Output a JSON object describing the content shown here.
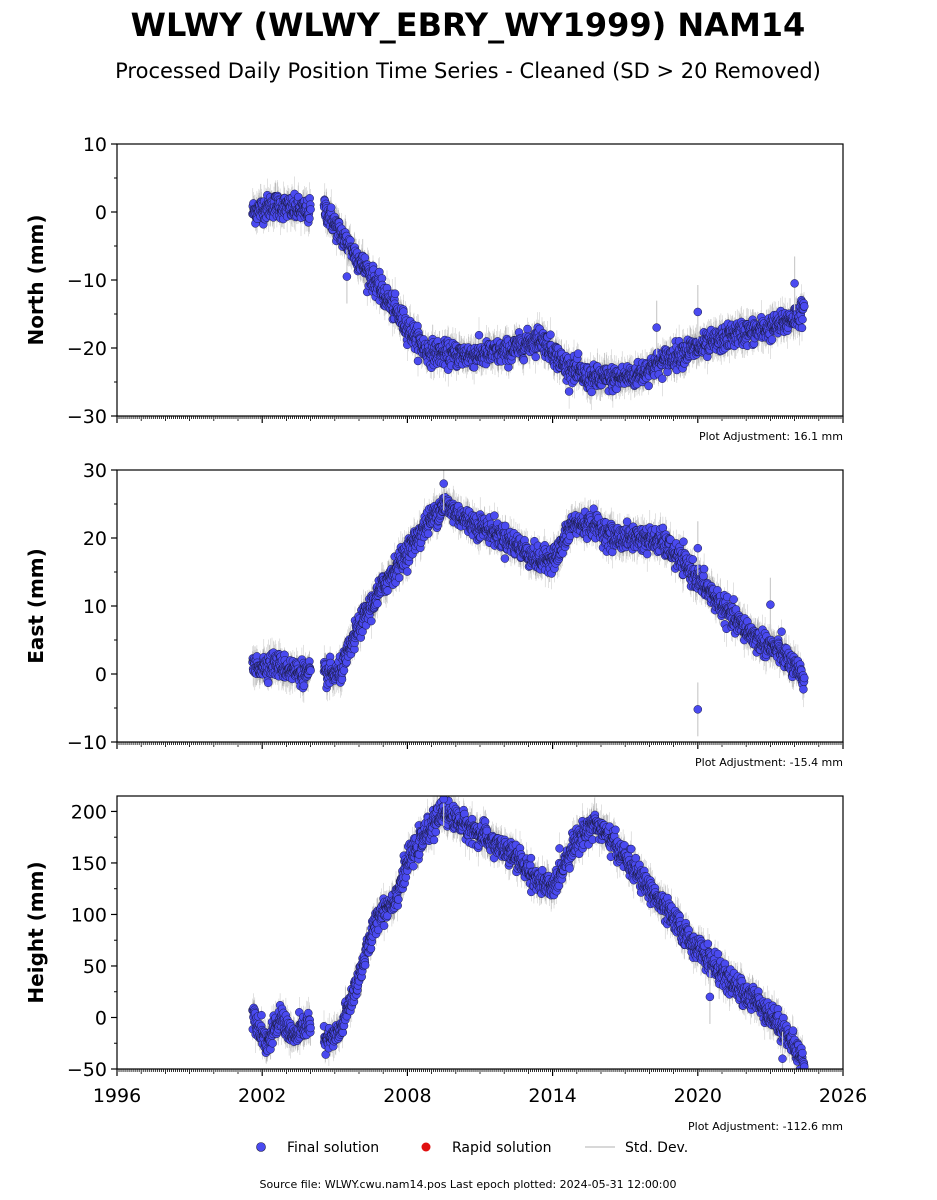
{
  "title": "WLWY (WLWY_EBRY_WY1999) NAM14",
  "subtitle": "Processed Daily Position Time Series - Cleaned (SD > 20 Removed)",
  "footer": "Source file: WLWY.cwu.nam14.pos  Last epoch plotted: 2024-05-31 12:00:00",
  "legend": {
    "final": "Final solution",
    "rapid": "Rapid solution",
    "std": "Std. Dev."
  },
  "colors": {
    "final_fill": "#4a4af0",
    "final_edge": "#1a1a40",
    "rapid": "#e01010",
    "std_dev": "#cccccc",
    "std_dev_dense": "#555555"
  },
  "chart_data": [
    {
      "type": "scatter",
      "ylabel": "North (mm)",
      "adjustment": "Plot Adjustment: 16.1 mm",
      "xlim": [
        1996,
        2026
      ],
      "ylim": [
        -30,
        10
      ],
      "yticks": [
        "10",
        "0",
        "−10",
        "−20",
        "−30"
      ],
      "ytick_values": [
        10,
        0,
        -10,
        -20,
        -30
      ],
      "trend": [
        [
          2001.6,
          0
        ],
        [
          2002.5,
          1
        ],
        [
          2003.3,
          0.5
        ],
        [
          2003.9,
          0
        ],
        [
          2004.5,
          1
        ],
        [
          2005.2,
          -3
        ],
        [
          2006.0,
          -7
        ],
        [
          2007.0,
          -12
        ],
        [
          2008.0,
          -17
        ],
        [
          2008.8,
          -20.5
        ],
        [
          2009.8,
          -21
        ],
        [
          2011.0,
          -21
        ],
        [
          2012.2,
          -20.5
        ],
        [
          2013.5,
          -18.5
        ],
        [
          2014.5,
          -22.5
        ],
        [
          2015.5,
          -24.5
        ],
        [
          2016.5,
          -24.5
        ],
        [
          2017.5,
          -24
        ],
        [
          2018.5,
          -22
        ],
        [
          2019.5,
          -20.5
        ],
        [
          2020.5,
          -19.5
        ],
        [
          2021.5,
          -18
        ],
        [
          2022.5,
          -17.5
        ],
        [
          2023.5,
          -16.5
        ],
        [
          2024.41,
          -14.5
        ]
      ],
      "outliers": [
        [
          2024.0,
          -10.5
        ],
        [
          2020.0,
          -14.7
        ],
        [
          2018.3,
          -17.0
        ],
        [
          2005.5,
          -9.5
        ]
      ]
    },
    {
      "type": "scatter",
      "ylabel": "East (mm)",
      "adjustment": "Plot Adjustment: -15.4 mm",
      "xlim": [
        1996,
        2026
      ],
      "ylim": [
        -10,
        30
      ],
      "yticks": [
        "30",
        "20",
        "10",
        "0",
        "−10"
      ],
      "ytick_values": [
        30,
        20,
        10,
        0,
        -10
      ],
      "trend": [
        [
          2001.6,
          1
        ],
        [
          2002.5,
          1.5
        ],
        [
          2003.3,
          0.5
        ],
        [
          2003.9,
          0
        ],
        [
          2004.6,
          0
        ],
        [
          2005.2,
          0
        ],
        [
          2006.0,
          7
        ],
        [
          2007.0,
          13
        ],
        [
          2008.0,
          18
        ],
        [
          2008.8,
          22
        ],
        [
          2009.5,
          25
        ],
        [
          2010.5,
          22.5
        ],
        [
          2011.5,
          21
        ],
        [
          2012.5,
          19
        ],
        [
          2013.5,
          16.5
        ],
        [
          2014.2,
          17.5
        ],
        [
          2014.8,
          22
        ],
        [
          2015.7,
          22
        ],
        [
          2016.5,
          20
        ],
        [
          2017.5,
          20
        ],
        [
          2018.5,
          19.5
        ],
        [
          2019.5,
          16
        ],
        [
          2020.5,
          12
        ],
        [
          2021.5,
          8
        ],
        [
          2022.5,
          5
        ],
        [
          2023.5,
          3
        ],
        [
          2024.41,
          -1
        ]
      ],
      "outliers": [
        [
          2020.0,
          -5.2
        ],
        [
          2020.0,
          18.5
        ],
        [
          2009.5,
          28.0
        ],
        [
          2023.0,
          10.2
        ]
      ]
    },
    {
      "type": "scatter",
      "ylabel": "Height (mm)",
      "adjustment": "Plot Adjustment: -112.6 mm",
      "xlim": [
        1996,
        2026
      ],
      "ylim": [
        -50,
        215
      ],
      "yticks": [
        "200",
        "150",
        "100",
        "50",
        "0",
        "−50"
      ],
      "ytick_values": [
        200,
        150,
        100,
        50,
        0,
        -50
      ],
      "xticks": [
        "1996",
        "2002",
        "2008",
        "2014",
        "2020",
        "2026"
      ],
      "xtick_values": [
        1996,
        2002,
        2008,
        2014,
        2020,
        2026
      ],
      "trend": [
        [
          2001.6,
          5
        ],
        [
          2002.2,
          -25
        ],
        [
          2002.8,
          0
        ],
        [
          2003.3,
          -20
        ],
        [
          2003.9,
          -5
        ],
        [
          2004.6,
          -25
        ],
        [
          2005.2,
          -15
        ],
        [
          2006.0,
          40
        ],
        [
          2006.8,
          100
        ],
        [
          2007.5,
          115
        ],
        [
          2008.0,
          150
        ],
        [
          2008.8,
          180
        ],
        [
          2009.5,
          200
        ],
        [
          2010.5,
          185
        ],
        [
          2011.5,
          170
        ],
        [
          2012.5,
          155
        ],
        [
          2013.5,
          130
        ],
        [
          2014.0,
          125
        ],
        [
          2014.8,
          165
        ],
        [
          2015.7,
          190
        ],
        [
          2016.5,
          170
        ],
        [
          2017.5,
          140
        ],
        [
          2018.5,
          110
        ],
        [
          2019.5,
          80
        ],
        [
          2020.5,
          55
        ],
        [
          2021.5,
          30
        ],
        [
          2022.5,
          15
        ],
        [
          2023.5,
          -10
        ],
        [
          2024.41,
          -45
        ]
      ],
      "outliers": [
        [
          2009.5,
          212
        ],
        [
          2020.5,
          20
        ],
        [
          2023.5,
          -40
        ]
      ]
    }
  ]
}
